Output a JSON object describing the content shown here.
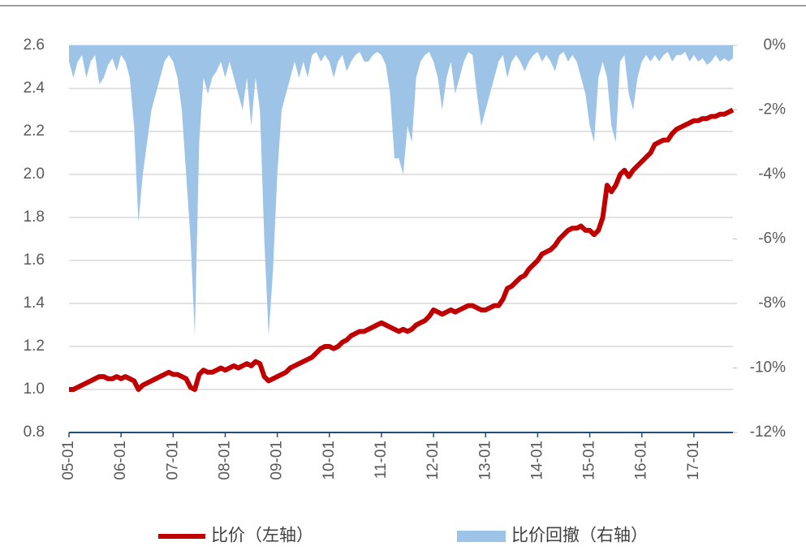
{
  "chart_data": {
    "type": "line-area",
    "x": [
      0,
      1,
      2,
      3,
      4,
      5,
      6,
      7,
      8,
      9,
      10,
      11,
      12,
      13,
      14,
      15,
      16,
      17,
      18,
      19,
      20,
      21,
      22,
      23,
      24,
      25,
      26,
      27,
      28,
      29,
      30,
      31,
      32,
      33,
      34,
      35,
      36,
      37,
      38,
      39,
      40,
      41,
      42,
      43,
      44,
      45,
      46,
      47,
      48,
      49,
      50,
      51,
      52,
      53,
      54,
      55,
      56,
      57,
      58,
      59,
      60,
      61,
      62,
      63,
      64,
      65,
      66,
      67,
      68,
      69,
      70,
      71,
      72,
      73,
      74,
      75,
      76,
      77,
      78,
      79,
      80,
      81,
      82,
      83,
      84,
      85,
      86,
      87,
      88,
      89,
      90,
      91,
      92,
      93,
      94,
      95,
      96,
      97,
      98,
      99,
      100,
      101,
      102,
      103,
      104,
      105,
      106,
      107,
      108,
      109,
      110,
      111,
      112,
      113,
      114,
      115,
      116,
      117,
      118,
      119,
      120,
      121,
      122,
      123,
      124,
      125,
      126,
      127,
      128,
      129,
      130,
      131,
      132,
      133,
      134,
      135,
      136,
      137,
      138,
      139,
      140,
      141,
      142,
      143,
      144,
      145,
      146,
      147,
      148,
      149,
      150,
      151,
      152,
      153
    ],
    "series": [
      {
        "name": "比价（左轴）",
        "color": "#c00000",
        "axis": "y",
        "values": [
          1.0,
          1.0,
          1.01,
          1.02,
          1.03,
          1.04,
          1.05,
          1.06,
          1.06,
          1.05,
          1.05,
          1.06,
          1.05,
          1.06,
          1.05,
          1.04,
          1.0,
          1.02,
          1.03,
          1.04,
          1.05,
          1.06,
          1.07,
          1.08,
          1.07,
          1.07,
          1.06,
          1.05,
          1.01,
          1.0,
          1.07,
          1.09,
          1.08,
          1.08,
          1.09,
          1.1,
          1.09,
          1.1,
          1.11,
          1.1,
          1.11,
          1.12,
          1.11,
          1.13,
          1.12,
          1.06,
          1.04,
          1.05,
          1.06,
          1.07,
          1.08,
          1.1,
          1.11,
          1.12,
          1.13,
          1.14,
          1.15,
          1.17,
          1.19,
          1.2,
          1.2,
          1.19,
          1.2,
          1.22,
          1.23,
          1.25,
          1.26,
          1.27,
          1.27,
          1.28,
          1.29,
          1.3,
          1.31,
          1.3,
          1.29,
          1.28,
          1.27,
          1.28,
          1.27,
          1.28,
          1.3,
          1.31,
          1.32,
          1.34,
          1.37,
          1.36,
          1.35,
          1.36,
          1.37,
          1.36,
          1.37,
          1.38,
          1.39,
          1.39,
          1.38,
          1.37,
          1.37,
          1.38,
          1.39,
          1.39,
          1.42,
          1.47,
          1.48,
          1.5,
          1.52,
          1.53,
          1.56,
          1.58,
          1.6,
          1.63,
          1.64,
          1.65,
          1.67,
          1.7,
          1.72,
          1.74,
          1.75,
          1.75,
          1.76,
          1.74,
          1.74,
          1.72,
          1.74,
          1.8,
          1.95,
          1.92,
          1.95,
          2.0,
          2.02,
          1.99,
          2.02,
          2.04,
          2.06,
          2.08,
          2.1,
          2.14,
          2.15,
          2.16,
          2.16,
          2.19,
          2.21,
          2.22,
          2.23,
          2.24,
          2.25,
          2.25,
          2.26,
          2.26,
          2.27,
          2.27,
          2.28,
          2.28,
          2.29,
          2.3
        ]
      },
      {
        "name": "比价回撤（右轴）",
        "color": "#9dc3e6",
        "axis": "y2",
        "values": [
          -0.5,
          -1,
          -0.5,
          -0.3,
          -1,
          -0.5,
          -0.3,
          -1.2,
          -1,
          -0.6,
          -0.4,
          -0.8,
          -0.3,
          -0.5,
          -1,
          -2.5,
          -5.5,
          -4,
          -3,
          -2,
          -1.5,
          -1,
          -0.5,
          -0.3,
          -0.5,
          -1,
          -2,
          -4,
          -6,
          -9,
          -3,
          -1,
          -1.5,
          -1,
          -0.8,
          -0.5,
          -1,
          -0.5,
          -1,
          -1.5,
          -2,
          -1,
          -2.5,
          -1,
          -2,
          -6,
          -9,
          -7,
          -4,
          -2,
          -1.5,
          -1,
          -0.5,
          -1,
          -0.5,
          -1,
          -0.3,
          -0.2,
          -0.5,
          -0.3,
          -0.5,
          -1,
          -0.5,
          -0.3,
          -0.8,
          -0.5,
          -0.3,
          -0.2,
          -0.5,
          -0.5,
          -0.3,
          -0.2,
          -0.3,
          -0.6,
          -1.5,
          -3.5,
          -3.5,
          -4,
          -2.5,
          -3,
          -1,
          -0.5,
          -0.3,
          -0.2,
          -0.5,
          -1,
          -2,
          -1,
          -0.5,
          -1.5,
          -1,
          -0.5,
          -0.2,
          -0.3,
          -1.5,
          -2.5,
          -2,
          -1.5,
          -1,
          -0.5,
          -0.3,
          -1,
          -0.5,
          -0.3,
          -0.5,
          -0.8,
          -0.5,
          -0.3,
          -0.2,
          -0.5,
          -0.3,
          -0.5,
          -0.8,
          -0.3,
          -0.2,
          -0.5,
          -0.3,
          -0.5,
          -1,
          -1.5,
          -2.5,
          -3,
          -1,
          -0.5,
          -1,
          -2.5,
          -3,
          -0.5,
          -0.3,
          -1.5,
          -2,
          -1,
          -0.5,
          -0.3,
          -0.5,
          -0.3,
          -0.5,
          -0.3,
          -0.2,
          -0.5,
          -0.3,
          -0.3,
          -0.2,
          -0.5,
          -0.3,
          -0.5,
          -0.4,
          -0.6,
          -0.5,
          -0.3,
          -0.5,
          -0.4,
          -0.5,
          -0.4
        ]
      }
    ],
    "xlim": [
      0,
      153
    ],
    "xticks": [
      {
        "value": 0,
        "label": "05-01"
      },
      {
        "value": 12,
        "label": "06-01"
      },
      {
        "value": 24,
        "label": "07-01"
      },
      {
        "value": 36,
        "label": "08-01"
      },
      {
        "value": 48,
        "label": "09-01"
      },
      {
        "value": 60,
        "label": "10-01"
      },
      {
        "value": 72,
        "label": "11-01"
      },
      {
        "value": 84,
        "label": "12-01"
      },
      {
        "value": 96,
        "label": "13-01"
      },
      {
        "value": 108,
        "label": "14-01"
      },
      {
        "value": 120,
        "label": "15-01"
      },
      {
        "value": 132,
        "label": "16-01"
      },
      {
        "value": 144,
        "label": "17-01"
      }
    ],
    "ylim": [
      0.8,
      2.6
    ],
    "yticks": [
      {
        "value": 0.8,
        "label": "0.8"
      },
      {
        "value": 1,
        "label": "1.0"
      },
      1.2,
      1.4,
      1.6,
      1.8,
      {
        "value": 2,
        "label": "2.0"
      },
      2.2,
      2.4,
      2.6
    ],
    "y2lim": [
      -12,
      0
    ],
    "y2ticks": [
      {
        "value": -12,
        "label": "-12%"
      },
      {
        "value": -10,
        "label": "-10%"
      },
      {
        "value": -8,
        "label": "-8%"
      },
      {
        "value": -6,
        "label": "-6%"
      },
      {
        "value": -4,
        "label": "-4%"
      },
      {
        "value": -2,
        "label": "-2%"
      },
      {
        "value": 0,
        "label": "0%"
      }
    ],
    "grid": true
  }
}
